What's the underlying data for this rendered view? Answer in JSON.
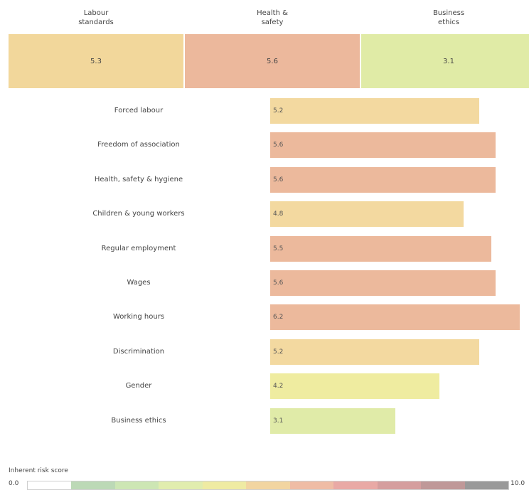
{
  "chart_data": {
    "type": "bar",
    "orientation": "horizontal",
    "xlim": [
      0,
      10
    ],
    "summary_categories": [
      {
        "label": "Labour\nstandards",
        "value": 5.3,
        "value_label": "5.3",
        "color": "#f2d79b"
      },
      {
        "label": "Health &\nsafety",
        "value": 5.6,
        "value_label": "5.6",
        "color": "#ecb89c"
      },
      {
        "label": "Business\nethics",
        "value": 3.1,
        "value_label": "3.1",
        "color": "#e0eba6"
      }
    ],
    "categories": [
      "Forced labour",
      "Freedom of association",
      "Health, safety & hygiene",
      "Children & young workers",
      "Regular employment",
      "Wages",
      "Working hours",
      "Discrimination",
      "Gender",
      "Business ethics"
    ],
    "values": [
      5.2,
      5.6,
      5.6,
      4.8,
      5.5,
      5.6,
      6.2,
      5.2,
      4.2,
      3.1
    ],
    "value_labels": [
      "5.2",
      "5.6",
      "5.6",
      "4.8",
      "5.5",
      "5.6",
      "6.2",
      "5.2",
      "4.2",
      "3.1"
    ],
    "bar_colors": [
      "#f3d9a0",
      "#ecb99c",
      "#ecb99c",
      "#f3d9a0",
      "#ecb99c",
      "#ecb99c",
      "#ecb99c",
      "#f3d9a0",
      "#efeca0",
      "#e0eba8"
    ]
  },
  "legend": {
    "title": "Inherent risk score",
    "min_label": "0.0",
    "max_label": "10.0",
    "colors": [
      "#ffffff",
      "#bcd9b6",
      "#cde6b4",
      "#e1edae",
      "#efeba3",
      "#f2d5a1",
      "#efbca5",
      "#e9a9a5",
      "#d59e9e",
      "#bf9898",
      "#999999"
    ]
  }
}
